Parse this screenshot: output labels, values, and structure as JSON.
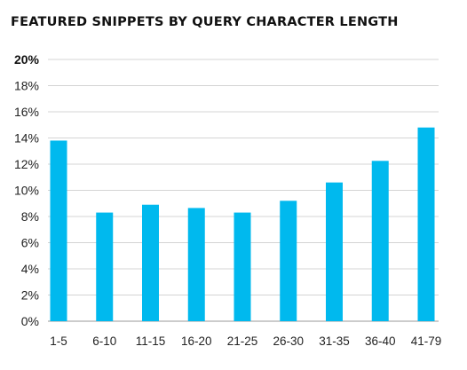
{
  "chart_data": {
    "type": "bar",
    "title": "FEATURED SNIPPETS BY QUERY CHARACTER LENGTH",
    "xlabel": "",
    "ylabel": "",
    "categories": [
      "1-5",
      "6-10",
      "11-15",
      "16-20",
      "21-25",
      "26-30",
      "31-35",
      "36-40",
      "41-79"
    ],
    "values": [
      13.8,
      8.3,
      8.9,
      8.65,
      8.3,
      9.2,
      10.6,
      12.25,
      14.8
    ],
    "value_unit": "%",
    "ylim": [
      0,
      20
    ],
    "yticks": [
      0,
      2,
      4,
      6,
      8,
      10,
      12,
      14,
      16,
      18,
      20
    ],
    "ytick_labels": [
      "0%",
      "2%",
      "4%",
      "6%",
      "8%",
      "10%",
      "12%",
      "14%",
      "16%",
      "18%",
      "20%"
    ],
    "grid": true,
    "legend": "none",
    "bar_color": "#00b9ee",
    "grid_color": "#d4d4d4"
  }
}
